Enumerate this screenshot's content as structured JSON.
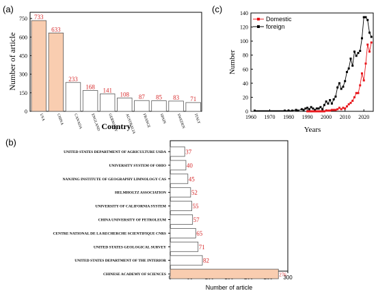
{
  "panels": {
    "a": {
      "label": "(a)"
    },
    "b": {
      "label": "(b)"
    },
    "c": {
      "label": "(c)"
    }
  },
  "colors": {
    "highlight_fill": "#f9cdb0",
    "bar_stroke": "#555555",
    "value_label": "#d62728",
    "domestic": "#e8161b",
    "foreign": "#000000"
  },
  "chart_data": [
    {
      "id": "a",
      "type": "bar",
      "title": "",
      "xlabel": "Country",
      "ylabel": "Number of article",
      "categories": [
        "USA",
        "CHINA",
        "CANADA",
        "ENGLAND",
        "GERMANY",
        "AUSTRALIA",
        "FRANCE",
        "SPAIN",
        "SWEDEN",
        "ITALY"
      ],
      "values": [
        733,
        633,
        233,
        168,
        141,
        108,
        87,
        85,
        83,
        71
      ],
      "highlighted": [
        0,
        1
      ],
      "ylim": [
        0,
        800
      ],
      "yticks": [
        0,
        150,
        300,
        450,
        600,
        750
      ],
      "grid": false
    },
    {
      "id": "b",
      "type": "bar",
      "orientation": "horizontal",
      "title": "",
      "xlabel": "Number of article",
      "ylabel": "",
      "categories": [
        "UNITED STATES DEPARTMENT OF AGRICULTURE USDA",
        "UNIVERSITY SYSTEM OF OHIO",
        "NANJING INSTITUTE OF GEOGRAPHY LIMNOLOGY CAS",
        "HELMHOLTZ ASSOCIATION",
        "UNIVERSITY OF CALIFORNIA SYSTEM",
        "CHINA UNIVERSITY OF PETROLEUM",
        "CENTRE NATIONAL DE LA RECHERCHE SCIENTIFIQUE CNRS",
        "UNITED STATES GEOLOGICAL SURVEY",
        "UNITED STATES DEPARTMENT OF THE INTERIOR",
        "CHINESE ACADEMY OF SCIENCES"
      ],
      "values": [
        37,
        40,
        45,
        52,
        55,
        57,
        65,
        71,
        82,
        276
      ],
      "highlighted": [
        9
      ],
      "xlim": [
        0,
        300
      ],
      "xticks": [
        0,
        50,
        100,
        150,
        200,
        250,
        300
      ],
      "grid": false
    },
    {
      "id": "c",
      "type": "line",
      "title": "",
      "xlabel": "Years",
      "ylabel": "Number",
      "xlim": [
        1960,
        2025
      ],
      "ylim": [
        0,
        140
      ],
      "xticks": [
        1960,
        1970,
        1980,
        1990,
        2000,
        2010,
        2020
      ],
      "yticks": [
        0,
        20,
        40,
        60,
        80,
        100,
        120,
        140
      ],
      "legend_position": "top-left",
      "grid": false,
      "series": [
        {
          "name": "Domestic",
          "x": [
            1990,
            1991,
            1992,
            1993,
            1994,
            1995,
            1996,
            1997,
            1998,
            1999,
            2000,
            2001,
            2002,
            2003,
            2004,
            2005,
            2006,
            2007,
            2008,
            2009,
            2010,
            2011,
            2012,
            2013,
            2014,
            2015,
            2016,
            2017,
            2018,
            2019,
            2020,
            2021,
            2022,
            2023,
            2024
          ],
          "values": [
            0,
            0,
            0,
            0,
            0,
            0,
            0,
            0,
            0,
            0,
            1,
            1,
            1,
            2,
            2,
            2,
            3,
            5,
            3,
            5,
            4,
            7,
            10,
            12,
            15,
            20,
            26,
            26,
            37,
            54,
            44,
            68,
            95,
            85,
            98
          ]
        },
        {
          "name": "foreign",
          "x": [
            1962,
            1978,
            1980,
            1982,
            1984,
            1985,
            1987,
            1988,
            1989,
            1990,
            1991,
            1992,
            1993,
            1994,
            1995,
            1996,
            1997,
            1998,
            1999,
            2000,
            2001,
            2002,
            2003,
            2004,
            2005,
            2006,
            2007,
            2008,
            2009,
            2010,
            2011,
            2012,
            2013,
            2014,
            2015,
            2016,
            2017,
            2018,
            2019,
            2020,
            2021,
            2022,
            2023,
            2024
          ],
          "values": [
            1,
            1,
            1,
            1,
            2,
            1,
            3,
            2,
            4,
            5,
            3,
            6,
            4,
            2,
            4,
            4,
            6,
            3,
            9,
            14,
            11,
            16,
            11,
            17,
            21,
            34,
            40,
            32,
            35,
            43,
            56,
            61,
            75,
            65,
            85,
            79,
            83,
            86,
            104,
            134,
            134,
            130,
            112,
            106
          ]
        }
      ]
    }
  ]
}
